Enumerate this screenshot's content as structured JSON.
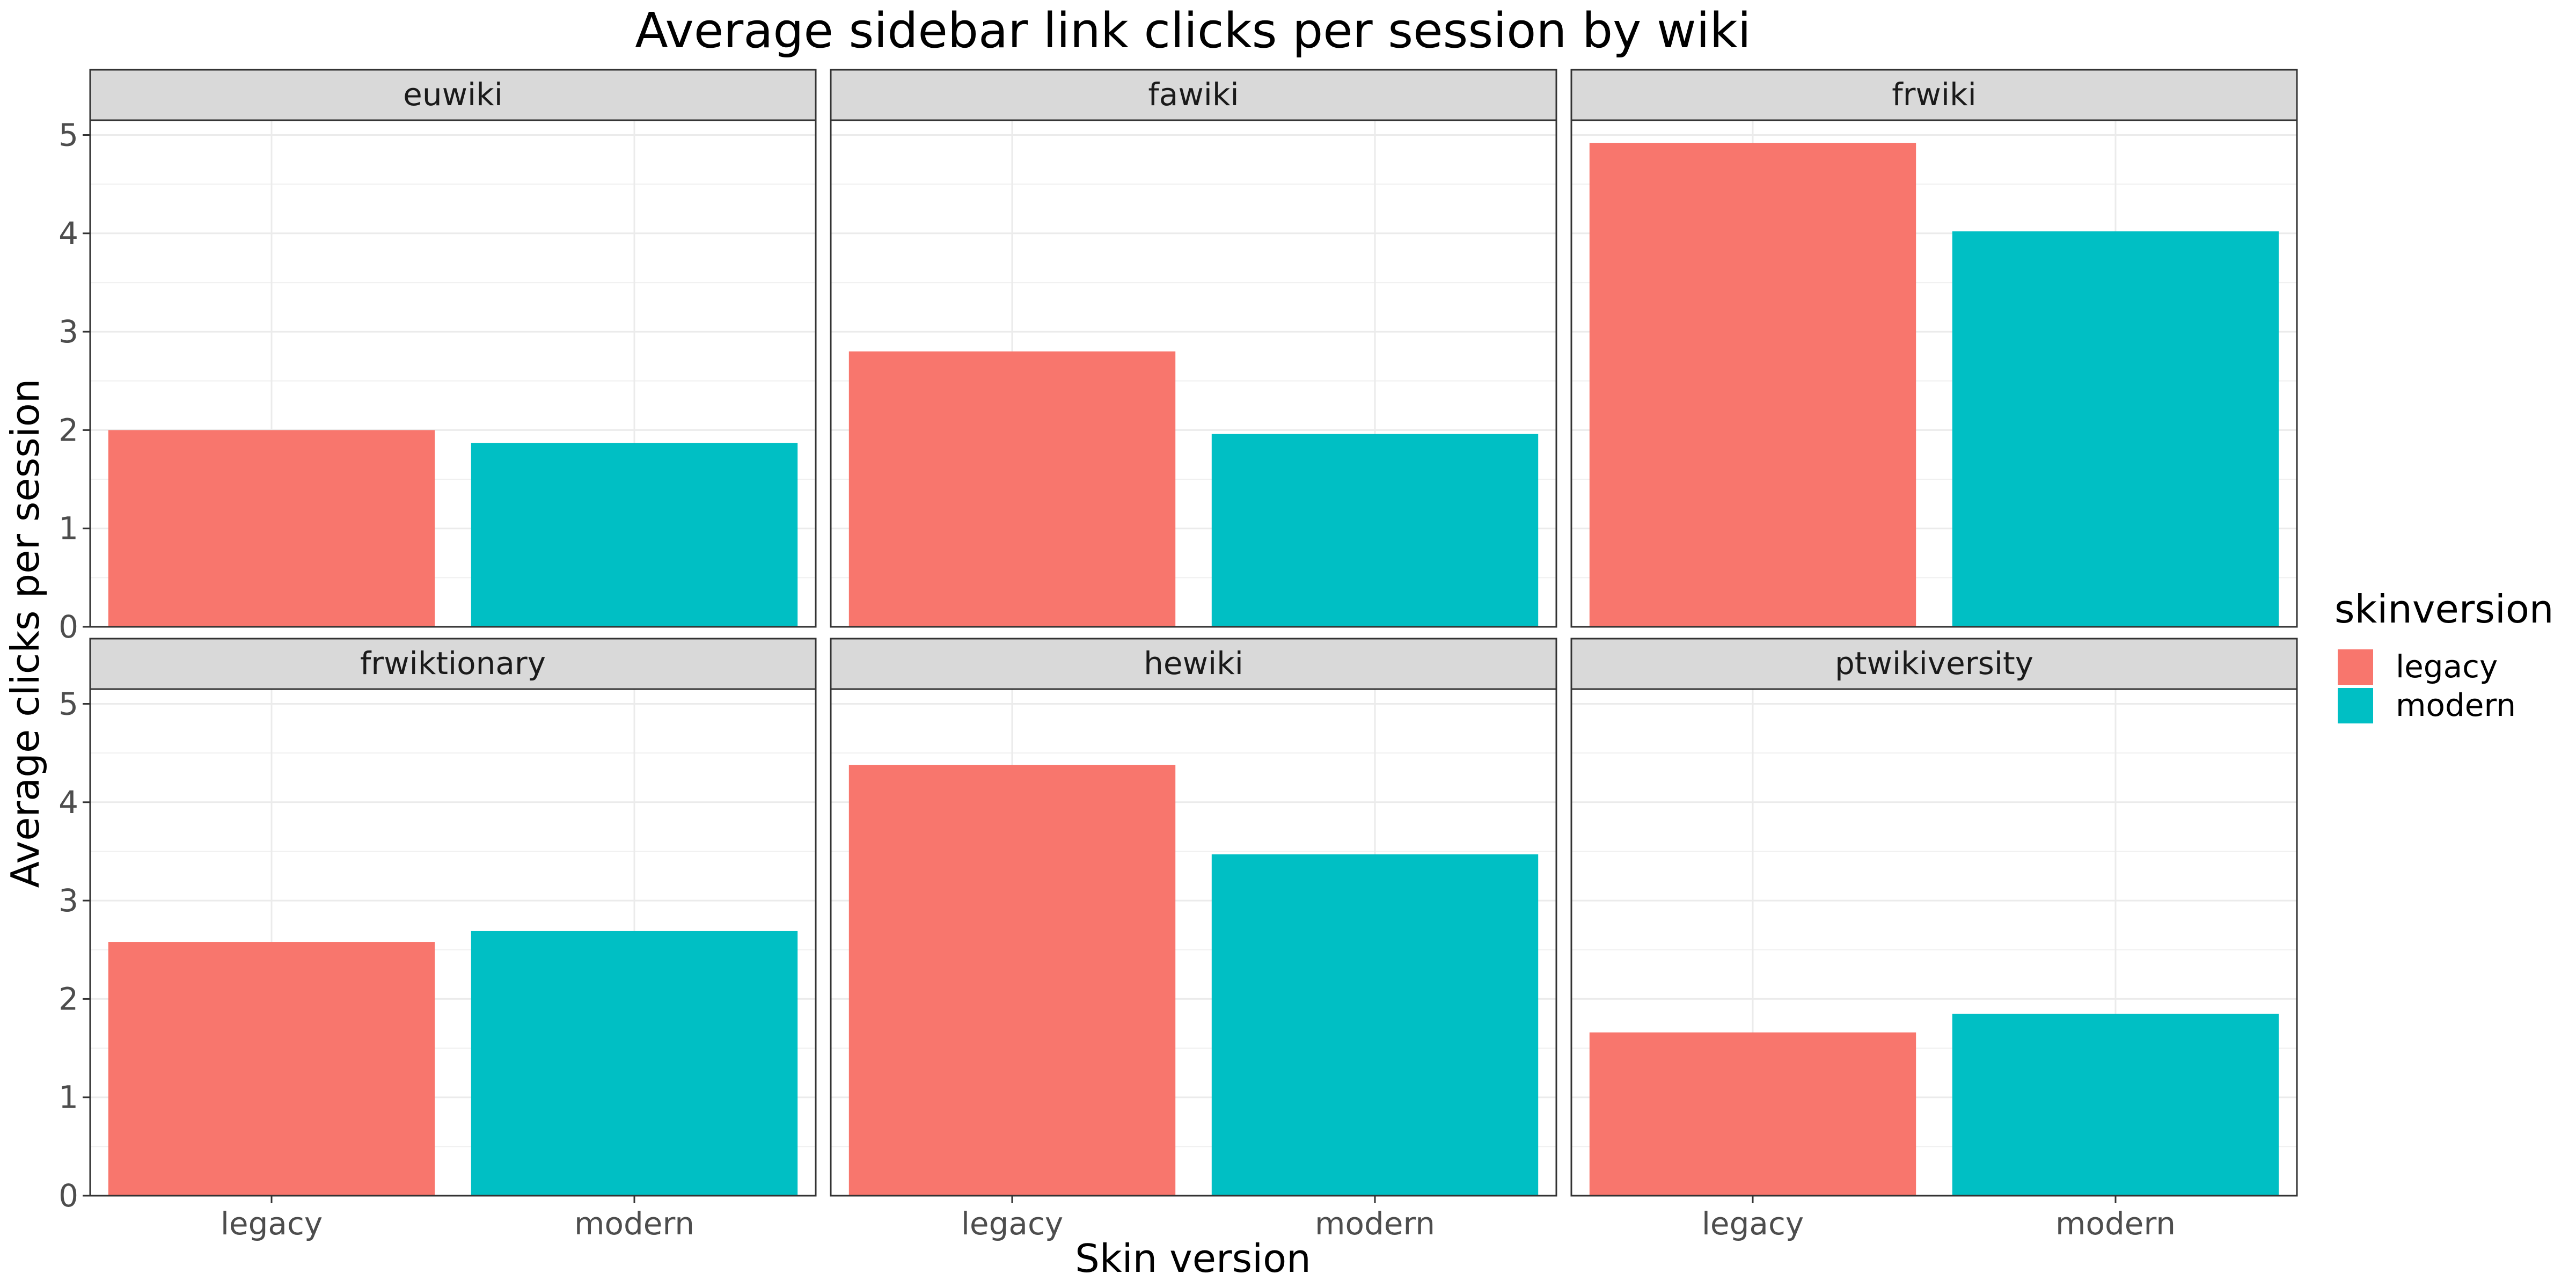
{
  "chart_data": {
    "type": "bar",
    "title": "Average sidebar link clicks per session by wiki",
    "xlabel": "Skin version",
    "ylabel": "Average clicks per session",
    "categories": [
      "legacy",
      "modern"
    ],
    "ylim": [
      0,
      5.15
    ],
    "yticks": [
      0,
      1,
      2,
      3,
      4,
      5
    ],
    "grid": true,
    "facet_layout": {
      "rows": 2,
      "cols": 3
    },
    "legend": {
      "title": "skinversion",
      "placement": "right",
      "entries": [
        "legacy",
        "modern"
      ]
    },
    "colors": {
      "legacy": "#F8766D",
      "modern": "#00BFC4"
    },
    "panels": [
      {
        "name": "euwiki",
        "values": [
          2.0,
          1.87
        ]
      },
      {
        "name": "fawiki",
        "values": [
          2.8,
          1.96
        ]
      },
      {
        "name": "frwiki",
        "values": [
          4.92,
          4.02
        ]
      },
      {
        "name": "frwiktionary",
        "values": [
          2.58,
          2.69
        ]
      },
      {
        "name": "hewiki",
        "values": [
          4.38,
          3.47
        ]
      },
      {
        "name": "ptwikiversity",
        "values": [
          1.66,
          1.85
        ]
      }
    ]
  }
}
